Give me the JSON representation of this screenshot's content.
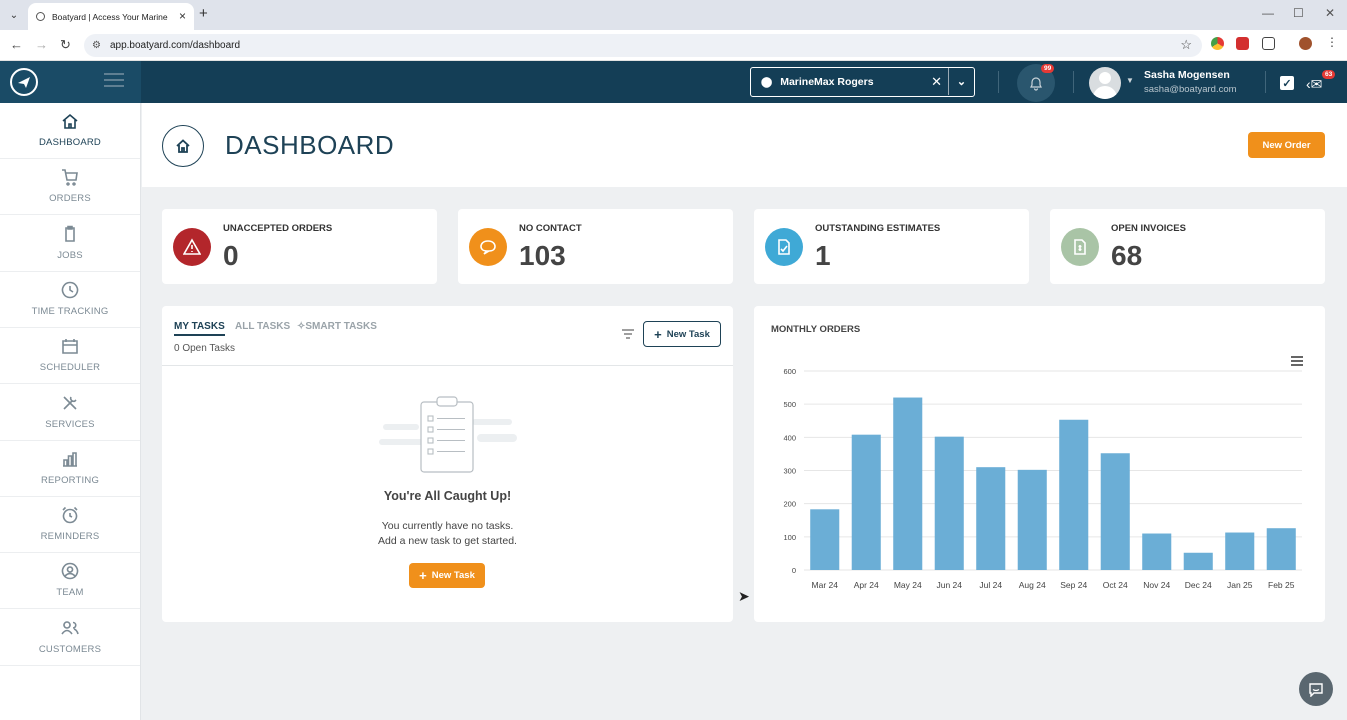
{
  "browser": {
    "tab_title": "Boatyard | Access Your Marine",
    "url": "app.boatyard.com/dashboard"
  },
  "topbar": {
    "location": "MarineMax Rogers",
    "notifications_badge": "99",
    "user_name": "Sasha Mogensen",
    "user_email": "sasha@boatyard.com",
    "messages_badge": "63"
  },
  "sidebar": {
    "items": [
      {
        "label": "DASHBOARD",
        "icon": "home-icon",
        "active": true
      },
      {
        "label": "ORDERS",
        "icon": "cart-icon"
      },
      {
        "label": "JOBS",
        "icon": "clipboard-icon"
      },
      {
        "label": "TIME TRACKING",
        "icon": "clock-icon"
      },
      {
        "label": "SCHEDULER",
        "icon": "calendar-icon"
      },
      {
        "label": "SERVICES",
        "icon": "tools-icon"
      },
      {
        "label": "REPORTING",
        "icon": "bar-chart-icon"
      },
      {
        "label": "REMINDERS",
        "icon": "alarm-icon"
      },
      {
        "label": "TEAM",
        "icon": "user-circle-icon"
      },
      {
        "label": "CUSTOMERS",
        "icon": "users-icon"
      }
    ]
  },
  "header": {
    "title": "DASHBOARD",
    "new_order_label": "New Order"
  },
  "stats": [
    {
      "label": "UNACCEPTED ORDERS",
      "value": "0",
      "color": "#b3262b",
      "icon": "warning-icon"
    },
    {
      "label": "NO CONTACT",
      "value": "103",
      "color": "#f0901b",
      "icon": "chat-icon"
    },
    {
      "label": "OUTSTANDING ESTIMATES",
      "value": "1",
      "color": "#3fa9d6",
      "icon": "document-icon"
    },
    {
      "label": "OPEN INVOICES",
      "value": "68",
      "color": "#a9c4a6",
      "icon": "invoice-icon"
    }
  ],
  "tasks": {
    "tabs": [
      "MY TASKS",
      "ALL TASKS",
      "SMART TASKS"
    ],
    "open_count": "0 Open Tasks",
    "new_task_label": "New Task",
    "empty_title": "You're All Caught Up!",
    "empty_line1": "You currently have no tasks.",
    "empty_line2": "Add a new task to get started.",
    "empty_button": "New Task"
  },
  "chart_data": {
    "type": "bar",
    "title": "MONTHLY ORDERS",
    "categories": [
      "Mar 24",
      "Apr 24",
      "May 24",
      "Jun 24",
      "Jul 24",
      "Aug 24",
      "Sep 24",
      "Oct 24",
      "Nov 24",
      "Dec 24",
      "Jan 25",
      "Feb 25"
    ],
    "values": [
      183,
      408,
      520,
      402,
      310,
      302,
      453,
      352,
      110,
      52,
      113,
      126
    ],
    "ylim": [
      0,
      600
    ],
    "yticks": [
      0,
      100,
      200,
      300,
      400,
      500,
      600
    ],
    "grid": true,
    "bar_color": "#6baed6"
  }
}
